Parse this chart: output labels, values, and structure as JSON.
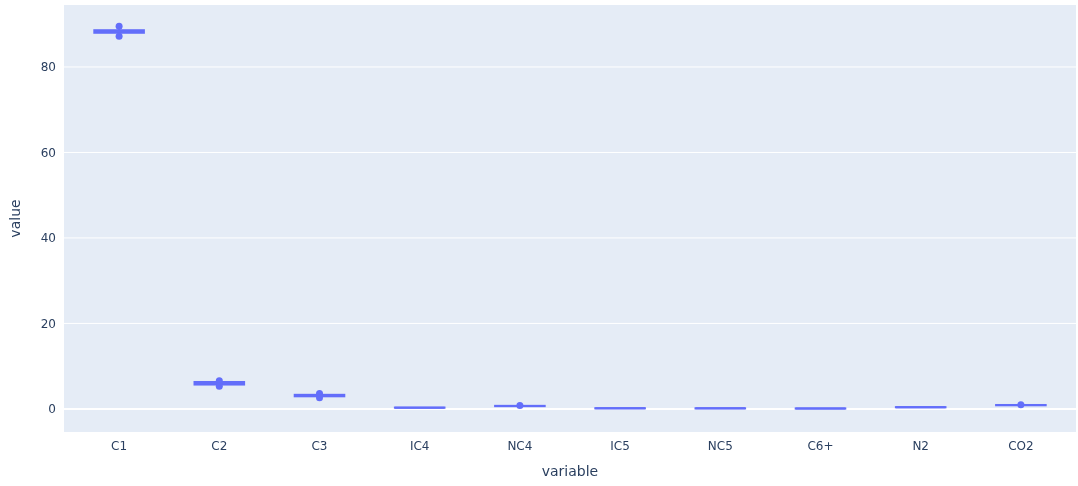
{
  "chart_data": {
    "type": "box",
    "xlabel": "variable",
    "ylabel": "value",
    "categories": [
      "C1",
      "C2",
      "C3",
      "IC4",
      "NC4",
      "IC5",
      "NC5",
      "C6+",
      "N2",
      "CO2"
    ],
    "ylim": [
      -5.4,
      94.5
    ],
    "yticks": [
      0,
      20,
      40,
      60,
      80
    ],
    "grid": "y",
    "series": [
      {
        "color": "#636efa",
        "boxes": [
          {
            "low": 87.8,
            "q1": 88.0,
            "median": 88.3,
            "q3": 88.6,
            "high": 88.9,
            "outliers": [
              89.5,
              87.2
            ]
          },
          {
            "low": 5.5,
            "q1": 5.7,
            "median": 6.0,
            "q3": 6.3,
            "high": 6.4,
            "outliers": [
              6.6,
              5.3
            ]
          },
          {
            "low": 2.8,
            "q1": 2.95,
            "median": 3.1,
            "q3": 3.3,
            "high": 3.4,
            "outliers": [
              3.6,
              2.6
            ]
          },
          {
            "low": 0.25,
            "q1": 0.28,
            "median": 0.3,
            "q3": 0.32,
            "high": 0.35
          },
          {
            "low": 0.6,
            "q1": 0.65,
            "median": 0.7,
            "q3": 0.72,
            "high": 0.75,
            "outliers": [
              0.8
            ]
          },
          {
            "low": 0.1,
            "q1": 0.13,
            "median": 0.15,
            "q3": 0.17,
            "high": 0.2
          },
          {
            "low": 0.08,
            "q1": 0.11,
            "median": 0.13,
            "q3": 0.15,
            "high": 0.18
          },
          {
            "low": 0.05,
            "q1": 0.08,
            "median": 0.1,
            "q3": 0.12,
            "high": 0.15
          },
          {
            "low": 0.35,
            "q1": 0.38,
            "median": 0.4,
            "q3": 0.42,
            "high": 0.45
          },
          {
            "low": 0.8,
            "q1": 0.85,
            "median": 0.9,
            "q3": 0.92,
            "high": 0.95,
            "outliers": [
              1.0
            ]
          }
        ]
      }
    ]
  }
}
